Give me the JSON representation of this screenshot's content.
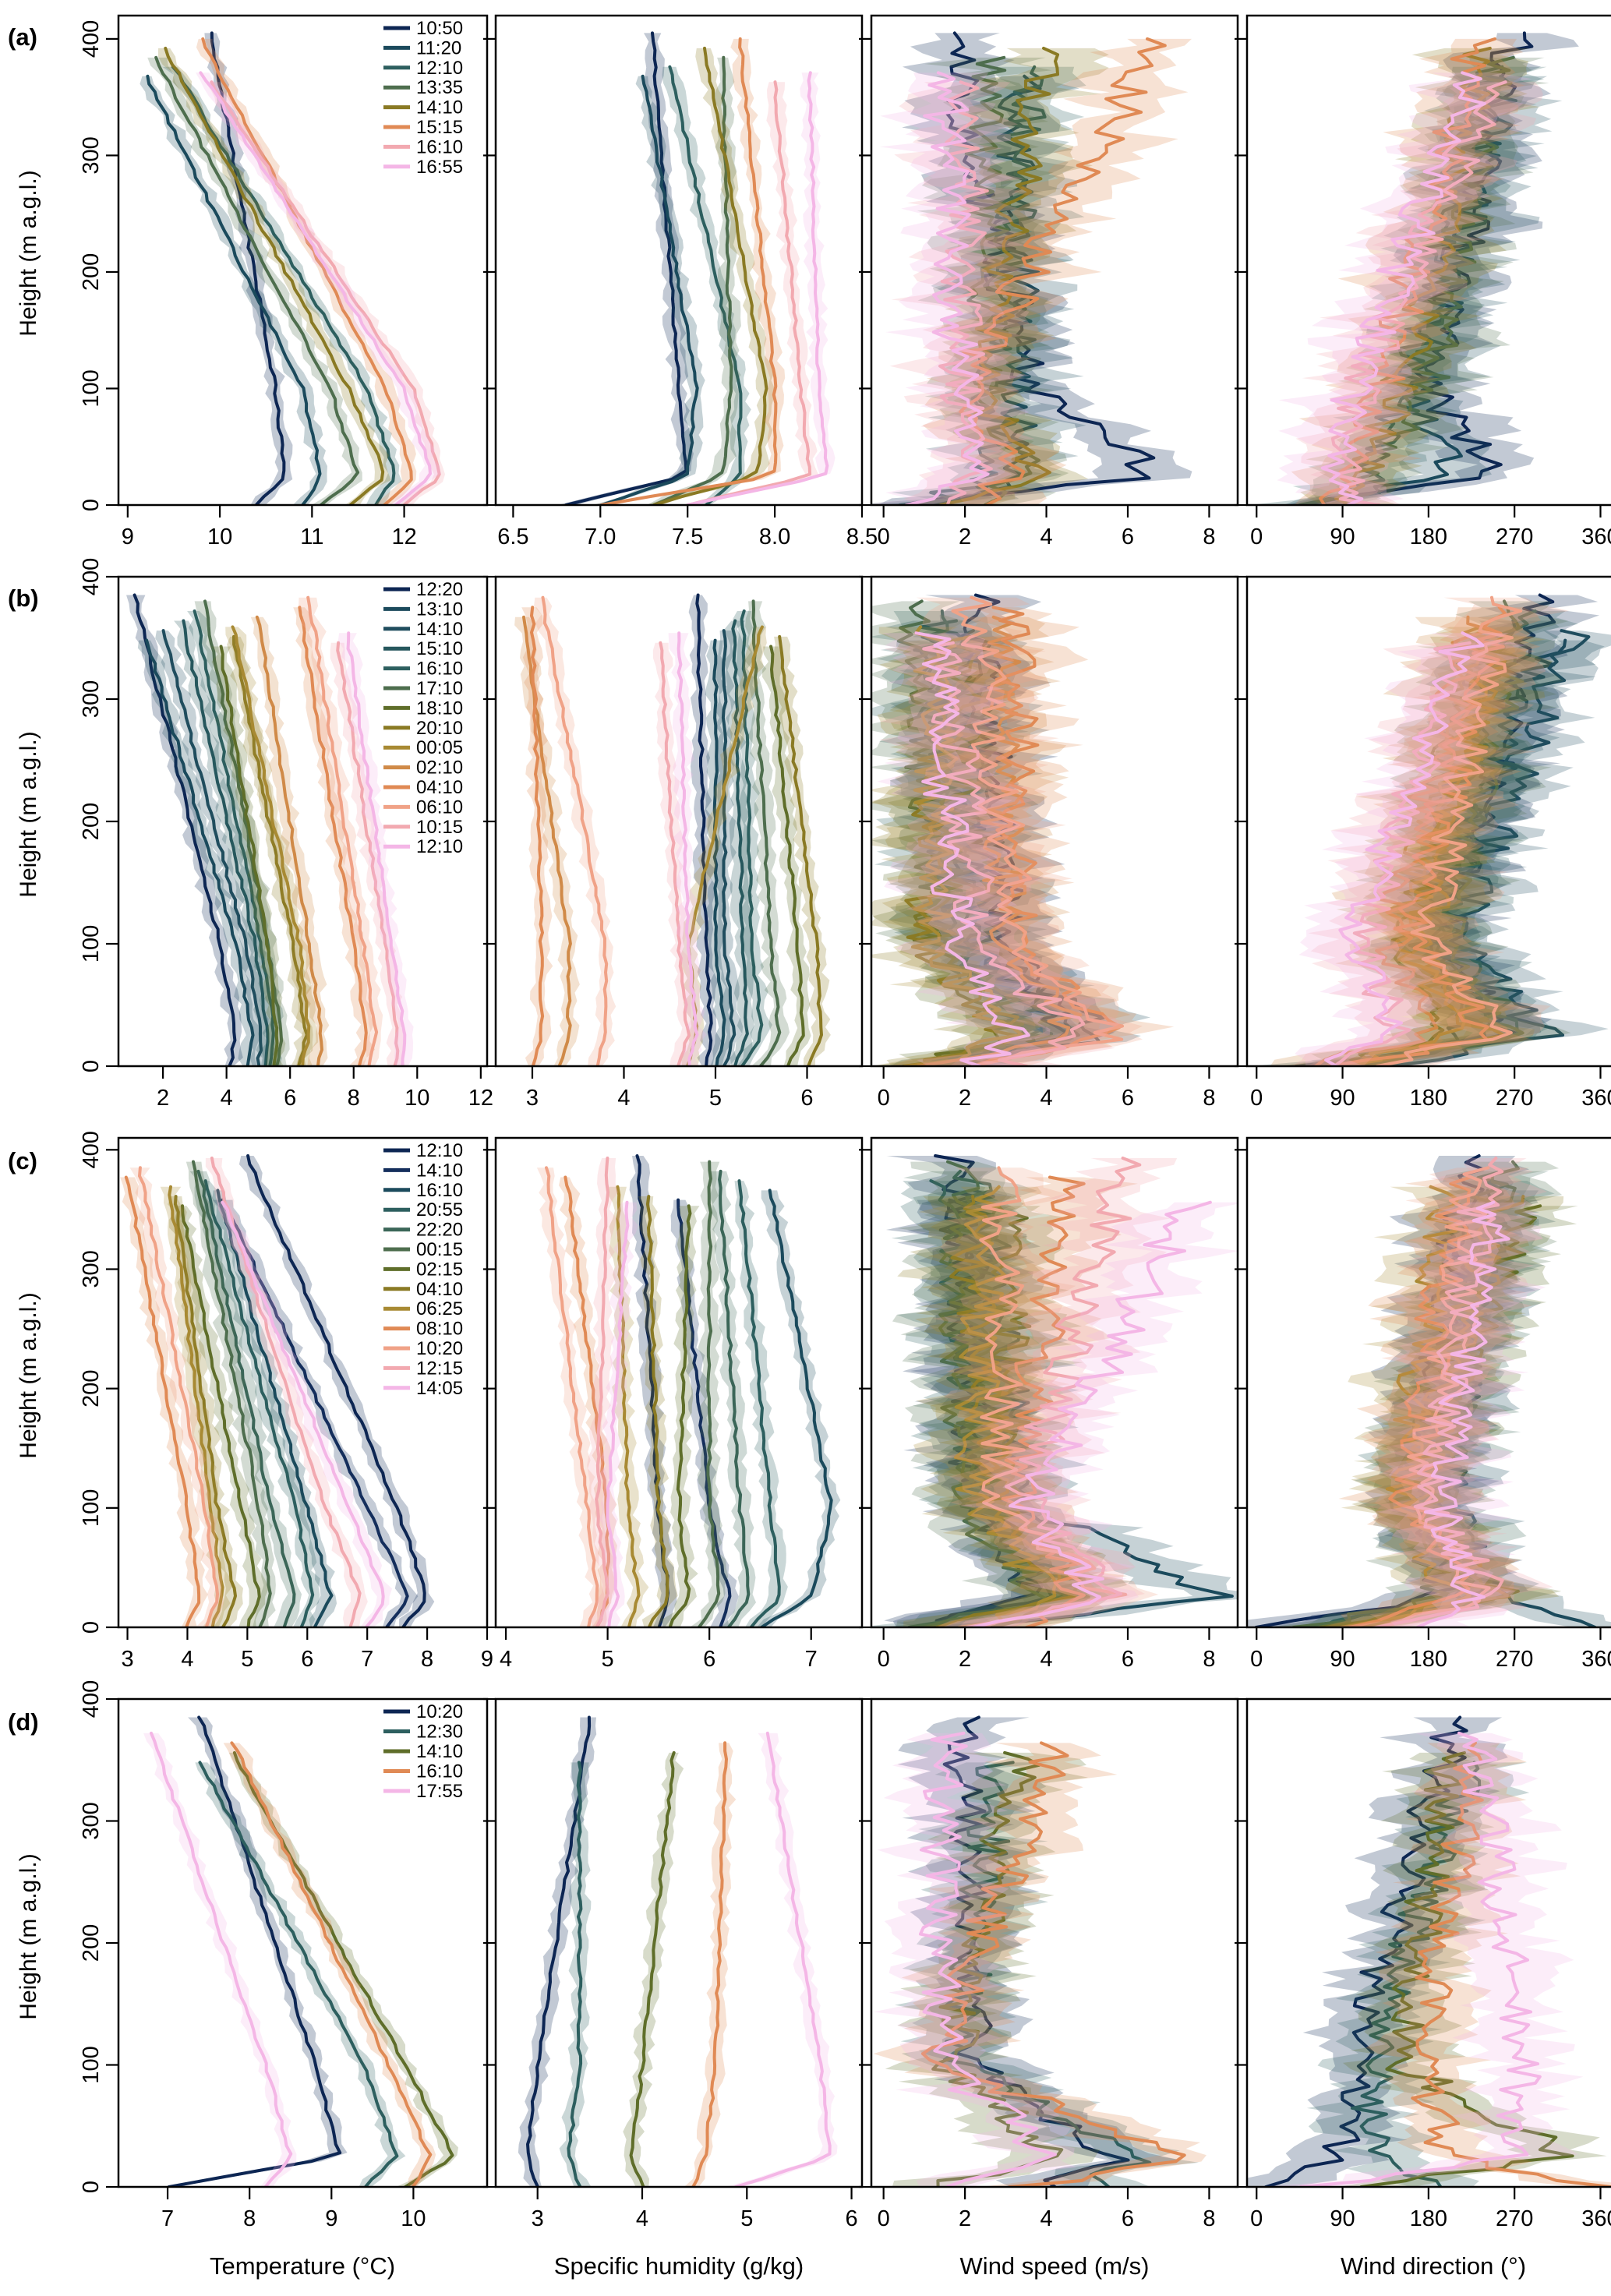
{
  "colors": {
    "navy": "#0d2653",
    "teal_dark": "#1b4a5c",
    "teal": "#2d5f5f",
    "green_gray": "#4e6e4e",
    "olive": "#5f6e2a",
    "olive_gold": "#8a7a24",
    "gold": "#a88a33",
    "orange": "#e08a55",
    "salmon": "#f0a287",
    "pink": "#f2a9b0",
    "lilac": "#f4b6e6"
  },
  "figure": {
    "y_axis_label": "Height (m a.g.l.)",
    "x_axis_labels": [
      "Temperature (°C)",
      "Specific humidity (g/kg)",
      "Wind speed (m/s)",
      "Wind direction (°)"
    ]
  },
  "chart_data": [
    {
      "panel": "(a)",
      "type": "line",
      "times": [
        "10:50",
        "11:20",
        "12:10",
        "13:35",
        "14:10",
        "15:15",
        "16:10",
        "16:55"
      ],
      "colors": [
        "#0d2653",
        "#1b4a5c",
        "#2d5f5f",
        "#4e6e4e",
        "#8a7a24",
        "#e08a55",
        "#f2a9b0",
        "#f4b6e6"
      ],
      "ylim": [
        0,
        420
      ],
      "yticks": [
        0,
        100,
        200,
        300,
        400
      ],
      "temperature": {
        "xlim": [
          8.9,
          12.9
        ],
        "xticks": [
          9,
          10,
          11,
          12
        ],
        "near_surface": [
          10.4,
          10.9,
          11.7,
          11.1,
          11.4,
          11.8,
          12.0,
          11.9
        ],
        "low_peak": [
          10.7,
          11.1,
          11.9,
          11.5,
          11.8,
          12.1,
          12.4,
          12.3
        ],
        "at_100": [
          10.6,
          10.9,
          11.6,
          11.2,
          11.4,
          11.8,
          12.1,
          12.0
        ],
        "top": [
          9.9,
          9.2,
          9.5,
          9.3,
          9.4,
          9.8,
          9.9,
          9.8
        ]
      },
      "humidity": {
        "xlim": [
          6.4,
          8.5
        ],
        "xticks": [
          6.5,
          7.0,
          7.5,
          8.0,
          8.5
        ],
        "near_surface": [
          6.8,
          7.0,
          7.6,
          7.3,
          7.3,
          7.0,
          7.5,
          7.5
        ],
        "low_peak": [
          7.5,
          7.5,
          7.8,
          7.7,
          7.9,
          8.0,
          8.2,
          8.3
        ],
        "at_100": [
          7.45,
          7.55,
          7.8,
          7.75,
          7.95,
          8.0,
          8.15,
          8.25
        ],
        "top": [
          7.3,
          7.25,
          7.4,
          7.7,
          7.6,
          7.8,
          8.0,
          8.2
        ]
      },
      "wind_speed": {
        "xlim": [
          -0.3,
          8.7
        ],
        "xticks": [
          0,
          2,
          4,
          6,
          8
        ],
        "near_surface": [
          0.5,
          1.0,
          0.8,
          2.0,
          1.5,
          2.3,
          1.3,
          1.0
        ],
        "low_peak": [
          6.8,
          3.5,
          2.8,
          3.5,
          3.6,
          3.0,
          2.5,
          2.3
        ],
        "at_100": [
          3.6,
          3.2,
          2.6,
          2.6,
          2.4,
          2.0,
          1.9,
          1.8
        ],
        "top": [
          1.6,
          3.4,
          3.7,
          2.5,
          4.0,
          6.8,
          2.1,
          1.5
        ]
      },
      "wind_direction": {
        "xlim": [
          -10,
          380
        ],
        "xticks": [
          0,
          90,
          180,
          270,
          360
        ],
        "near_surface": [
          30,
          45,
          60,
          90,
          80,
          70,
          110,
          90
        ],
        "low_peak": [
          250,
          200,
          120,
          110,
          110,
          100,
          90,
          90
        ],
        "at_100": [
          180,
          170,
          160,
          180,
          150,
          130,
          110,
          100
        ],
        "top": [
          270,
          260,
          240,
          250,
          240,
          230,
          250,
          230
        ]
      }
    },
    {
      "panel": "(b)",
      "type": "line",
      "times": [
        "12:20",
        "13:10",
        "14:10",
        "15:10",
        "16:10",
        "17:10",
        "18:10",
        "20:10",
        "00:05",
        "02:10",
        "04:10",
        "06:10",
        "10:15",
        "12:10"
      ],
      "colors": [
        "#0d2653",
        "#1b4a5c",
        "#204d5e",
        "#26575d",
        "#2d5f5f",
        "#4e6e4e",
        "#5f6e2a",
        "#8a7a24",
        "#a88a33",
        "#d08a48",
        "#e08a55",
        "#f0a287",
        "#f2a9b0",
        "#f4b6e6"
      ],
      "ylim": [
        0,
        400
      ],
      "yticks": [
        0,
        100,
        200,
        300,
        400
      ],
      "temperature": {
        "xlim": [
          0.6,
          12.2
        ],
        "xticks": [
          2,
          4,
          6,
          8,
          10,
          12
        ],
        "near_surface": [
          4.1,
          4.7,
          5.0,
          5.2,
          5.4,
          5.6,
          5.5,
          6.3,
          6.4,
          6.9,
          8.2,
          8.5,
          9.3,
          9.5
        ],
        "low_peak": [
          4.3,
          4.8,
          5.1,
          5.3,
          5.5,
          5.7,
          5.6,
          6.5,
          6.6,
          7.0,
          8.4,
          8.7,
          9.4,
          9.6
        ],
        "at_100": [
          3.8,
          4.3,
          4.6,
          4.9,
          5.1,
          5.3,
          5.3,
          6.1,
          6.3,
          6.6,
          8.0,
          8.3,
          9.0,
          9.2
        ],
        "top": [
          1.1,
          1.5,
          2.0,
          2.6,
          3.0,
          3.3,
          3.8,
          4.2,
          4.2,
          5.0,
          6.3,
          6.6,
          7.5,
          7.8
        ]
      },
      "humidity": {
        "xlim": [
          2.6,
          6.6
        ],
        "xticks": [
          3,
          4,
          5,
          6
        ],
        "near_surface": [
          4.9,
          5.0,
          5.1,
          5.2,
          5.3,
          5.5,
          5.8,
          6.0,
          4.7,
          3.3,
          3.0,
          3.7,
          4.6,
          4.7
        ],
        "low_peak": [
          4.95,
          5.1,
          5.2,
          5.35,
          5.5,
          5.7,
          5.95,
          6.15,
          4.8,
          3.4,
          3.1,
          3.8,
          4.7,
          4.8
        ],
        "at_100": [
          4.9,
          5.0,
          5.1,
          5.3,
          5.4,
          5.6,
          5.9,
          6.1,
          4.7,
          3.4,
          3.1,
          3.8,
          4.6,
          4.7
        ],
        "top": [
          4.8,
          5.0,
          5.1,
          5.2,
          5.3,
          5.4,
          5.6,
          5.7,
          5.5,
          2.9,
          3.0,
          3.1,
          4.4,
          4.6
        ]
      },
      "wind_speed": {
        "xlim": [
          -0.3,
          8.7
        ],
        "xticks": [
          0,
          2,
          4,
          6,
          8
        ],
        "near_surface": [
          2.0,
          1.5,
          1.6,
          0.9,
          1.2,
          1.1,
          0.8,
          0.7,
          0.9,
          1.4,
          2.0,
          2.6,
          3.0,
          2.2
        ],
        "low_peak": [
          4.5,
          5.6,
          4.5,
          4.0,
          3.8,
          3.8,
          3.2,
          3.2,
          3.0,
          4.7,
          5.6,
          5.7,
          4.8,
          3.4
        ],
        "at_100": [
          3.0,
          2.2,
          2.5,
          1.8,
          1.6,
          1.4,
          1.2,
          1.0,
          1.2,
          3.0,
          3.4,
          3.3,
          2.4,
          1.8
        ],
        "top": [
          2.4,
          1.6,
          2.2,
          1.4,
          1.2,
          0.8,
          2.3,
          1.6,
          1.3,
          2.8,
          3.2,
          2.2,
          1.4,
          1.2
        ]
      },
      "wind_direction": {
        "xlim": [
          -10,
          380
        ],
        "xticks": [
          0,
          90,
          180,
          270,
          360
        ],
        "near_surface": [
          80,
          100,
          140,
          60,
          90,
          110,
          70,
          80,
          90,
          60,
          90,
          110,
          80,
          80
        ],
        "low_peak": [
          270,
          250,
          300,
          220,
          280,
          260,
          200,
          240,
          210,
          180,
          250,
          260,
          150,
          140
        ],
        "at_100": [
          190,
          170,
          210,
          180,
          200,
          190,
          160,
          170,
          150,
          140,
          160,
          180,
          110,
          100
        ],
        "top": [
          300,
          310,
          330,
          250,
          270,
          280,
          220,
          250,
          240,
          230,
          250,
          260,
          210,
          220
        ]
      }
    },
    {
      "panel": "(c)",
      "type": "line",
      "times": [
        "12:10",
        "14:10",
        "16:10",
        "20:55",
        "22:20",
        "00:15",
        "02:15",
        "04:10",
        "06:25",
        "08:10",
        "10:20",
        "12:15",
        "14:05"
      ],
      "colors": [
        "#0d2653",
        "#142e5c",
        "#1b4a5c",
        "#2d5f5f",
        "#3b6658",
        "#4e6e4e",
        "#5f6e2a",
        "#8a7a24",
        "#a88a33",
        "#e08a55",
        "#f0a287",
        "#f2a9b0",
        "#f4b6e6"
      ],
      "ylim": [
        0,
        410
      ],
      "yticks": [
        0,
        100,
        200,
        300,
        400
      ],
      "temperature": {
        "xlim": [
          2.85,
          9.0
        ],
        "xticks": [
          3,
          4,
          5,
          6,
          7,
          8,
          9
        ],
        "near_surface": [
          7.6,
          7.3,
          6.1,
          5.9,
          5.6,
          5.2,
          5.0,
          4.6,
          4.4,
          4.0,
          4.3,
          6.7,
          7.0
        ],
        "low_peak": [
          8.0,
          7.7,
          6.4,
          6.1,
          5.8,
          5.4,
          5.2,
          4.8,
          4.6,
          4.2,
          4.5,
          6.9,
          7.3
        ],
        "at_100": [
          7.5,
          7.0,
          6.0,
          5.8,
          5.4,
          5.2,
          4.9,
          4.5,
          4.4,
          4.0,
          4.3,
          6.3,
          6.7
        ],
        "top": [
          5.0,
          4.6,
          4.5,
          4.3,
          4.2,
          4.1,
          3.9,
          3.8,
          3.7,
          3.0,
          3.2,
          4.4,
          4.6
        ]
      },
      "humidity": {
        "xlim": [
          3.9,
          7.5
        ],
        "xticks": [
          4,
          5,
          6,
          7
        ],
        "near_surface": [
          5.5,
          6.1,
          6.5,
          6.4,
          6.2,
          5.9,
          5.6,
          5.4,
          5.2,
          4.9,
          4.8,
          4.9,
          5.0
        ],
        "low_peak": [
          5.6,
          6.2,
          7.0,
          6.7,
          6.4,
          6.1,
          5.8,
          5.6,
          5.3,
          5.0,
          4.9,
          5.0,
          5.1
        ],
        "at_100": [
          5.5,
          6.0,
          7.2,
          6.6,
          6.3,
          6.0,
          5.7,
          5.5,
          5.2,
          5.0,
          4.8,
          4.9,
          5.0
        ],
        "top": [
          5.3,
          5.7,
          6.6,
          6.3,
          6.1,
          6.0,
          5.8,
          5.4,
          5.1,
          4.6,
          4.4,
          5.0,
          5.2
        ]
      },
      "wind_speed": {
        "xlim": [
          -0.3,
          8.7
        ],
        "xticks": [
          0,
          2,
          4,
          6,
          8
        ],
        "near_surface": [
          1.0,
          0.5,
          1.5,
          0.8,
          1.2,
          1.0,
          2.2,
          1.5,
          2.0,
          3.3,
          2.5,
          1.8,
          2.4
        ],
        "low_peak": [
          3.5,
          4.5,
          8.5,
          4.5,
          5.0,
          4.0,
          5.0,
          4.5,
          4.2,
          5.0,
          5.5,
          6.0,
          5.2
        ],
        "at_100": [
          2.5,
          2.2,
          3.5,
          2.4,
          2.6,
          2.0,
          3.0,
          2.8,
          2.2,
          3.2,
          3.0,
          3.4,
          3.6
        ],
        "top": [
          1.8,
          2.0,
          2.4,
          1.6,
          2.2,
          1.8,
          3.2,
          2.0,
          2.6,
          4.5,
          2.8,
          6.0,
          7.5
        ]
      },
      "wind_direction": {
        "xlim": [
          -10,
          380
        ],
        "xticks": [
          0,
          90,
          180,
          270,
          360
        ],
        "near_surface": [
          20,
          50,
          350,
          60,
          90,
          40,
          80,
          90,
          100,
          110,
          120,
          140,
          160
        ],
        "low_peak": [
          200,
          220,
          260,
          230,
          240,
          200,
          260,
          250,
          210,
          220,
          240,
          250,
          230
        ],
        "at_100": [
          170,
          180,
          200,
          160,
          190,
          150,
          170,
          160,
          150,
          160,
          170,
          180,
          190
        ],
        "top": [
          220,
          230,
          240,
          260,
          250,
          270,
          280,
          260,
          200,
          210,
          230,
          240,
          250
        ]
      }
    },
    {
      "panel": "(d)",
      "type": "line",
      "times": [
        "10:20",
        "12:30",
        "14:10",
        "16:10",
        "17:55"
      ],
      "colors": [
        "#0d2653",
        "#2d5f5f",
        "#5f6e2a",
        "#e08a55",
        "#f4b6e6"
      ],
      "ylim": [
        0,
        400
      ],
      "yticks": [
        0,
        100,
        200,
        300,
        400
      ],
      "temperature": {
        "xlim": [
          6.4,
          10.9
        ],
        "xticks": [
          7,
          8,
          9,
          10
        ],
        "near_surface": [
          7.0,
          9.4,
          9.9,
          10.0,
          8.2
        ],
        "low_peak": [
          9.1,
          9.8,
          10.5,
          10.2,
          8.5
        ],
        "at_100": [
          8.8,
          9.4,
          9.9,
          9.7,
          8.2
        ],
        "top": [
          7.4,
          7.4,
          7.8,
          7.8,
          6.8
        ]
      },
      "humidity": {
        "xlim": [
          2.6,
          6.1
        ],
        "xticks": [
          3,
          4,
          5,
          6
        ],
        "near_surface": [
          3.0,
          3.4,
          4.0,
          4.5,
          4.9
        ],
        "low_peak": [
          2.9,
          3.3,
          3.9,
          4.6,
          5.8
        ],
        "at_100": [
          3.0,
          3.4,
          4.0,
          4.7,
          5.7
        ],
        "top": [
          3.5,
          3.4,
          4.3,
          4.8,
          5.2
        ]
      },
      "wind_speed": {
        "xlim": [
          -0.3,
          8.7
        ],
        "xticks": [
          0,
          2,
          4,
          6,
          8
        ],
        "near_surface": [
          4.0,
          5.2,
          1.2,
          3.6,
          2.0
        ],
        "low_peak": [
          5.7,
          6.2,
          4.3,
          7.6,
          4.2
        ],
        "at_100": [
          2.3,
          1.8,
          1.6,
          1.3,
          1.4
        ],
        "top": [
          2.0,
          2.8,
          3.4,
          4.2,
          1.5
        ]
      },
      "wind_direction": {
        "xlim": [
          -10,
          380
        ],
        "xticks": [
          0,
          90,
          180,
          270,
          360
        ],
        "near_surface": [
          30,
          190,
          100,
          350,
          60
        ],
        "low_peak": [
          90,
          120,
          330,
          200,
          270
        ],
        "at_100": [
          100,
          120,
          150,
          170,
          280
        ],
        "top": [
          210,
          220,
          200,
          230,
          230
        ]
      }
    }
  ]
}
